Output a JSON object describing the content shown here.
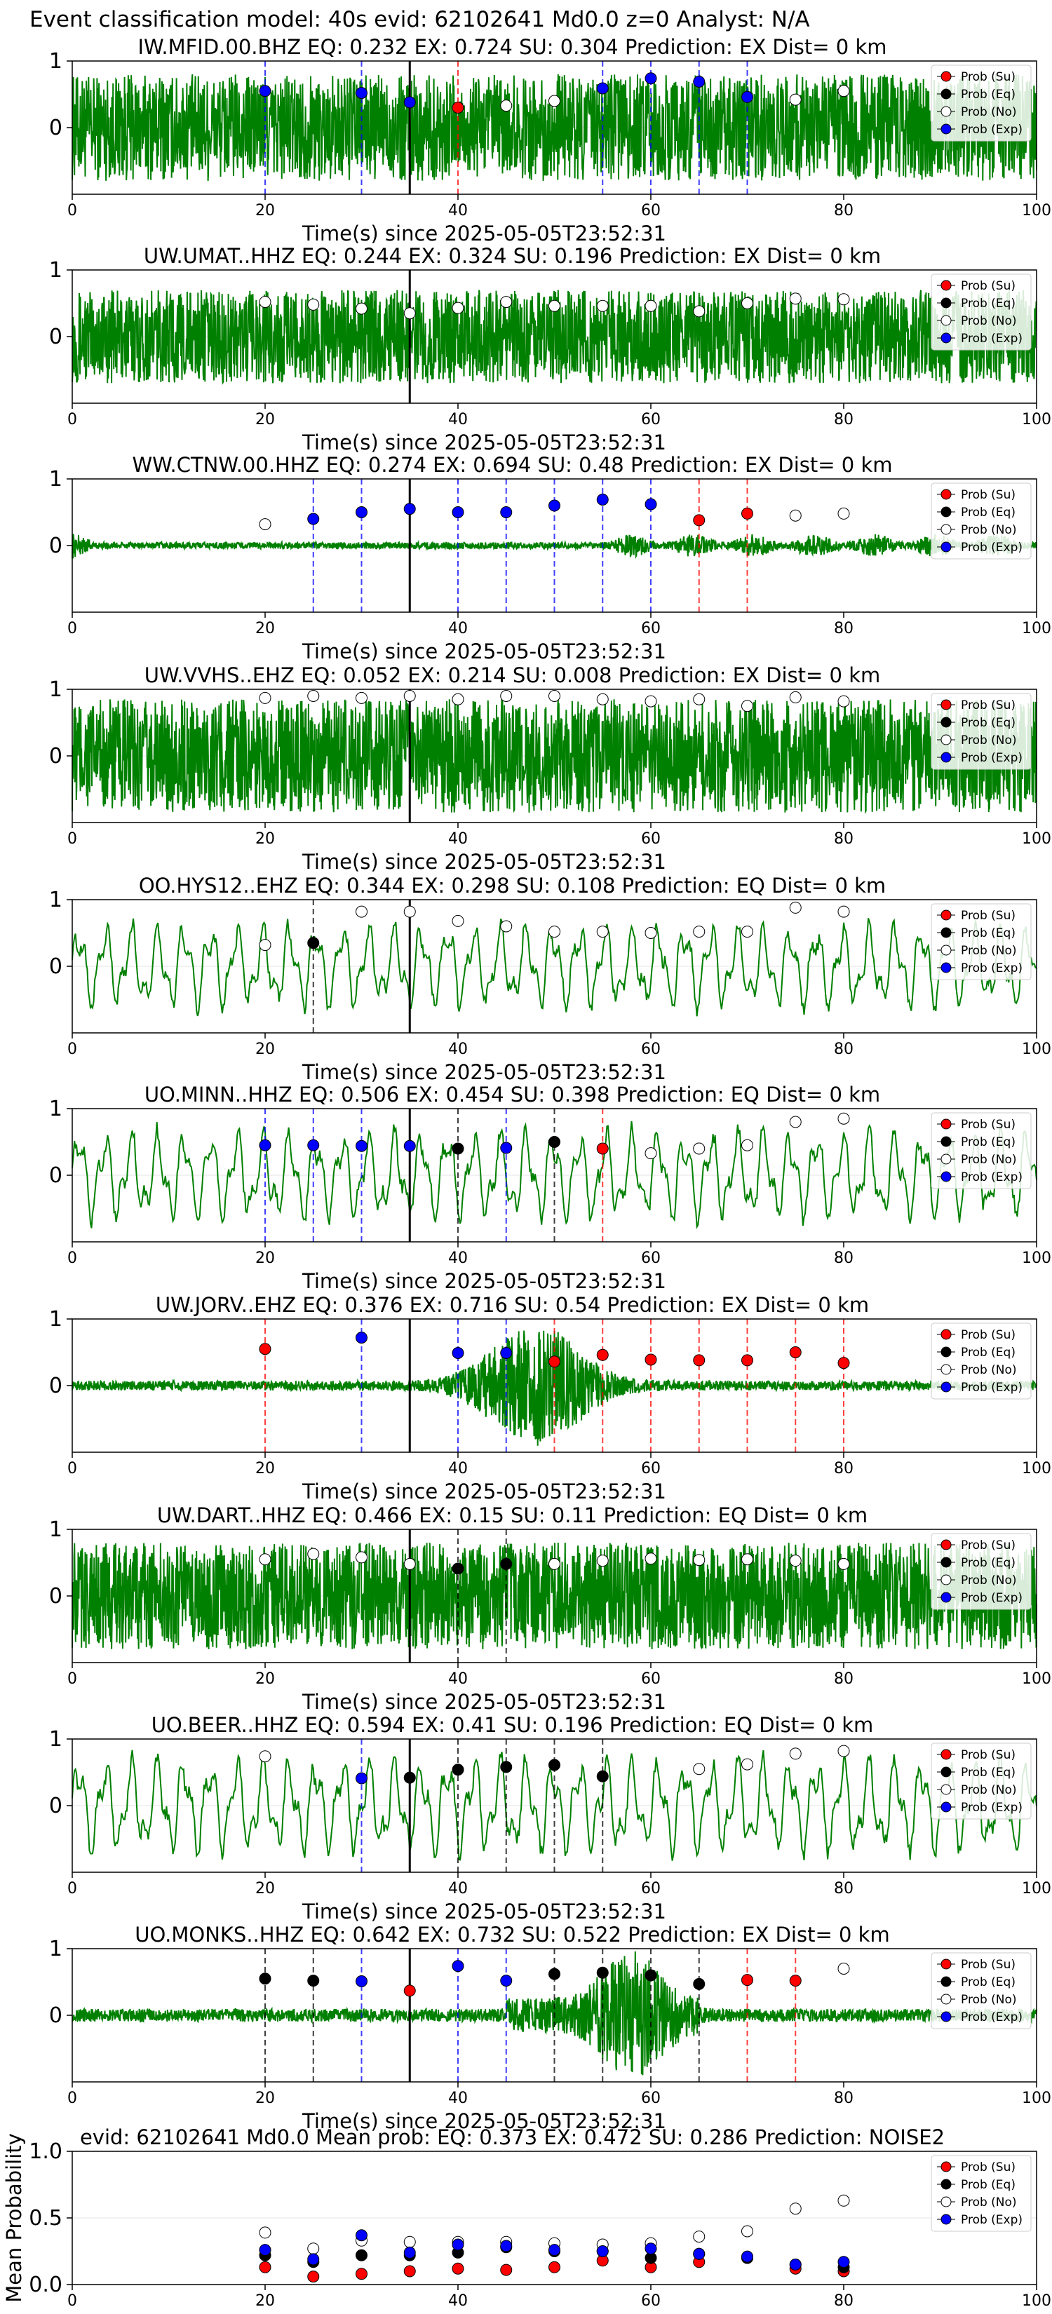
{
  "figure": {
    "title": "Event classification model: 40s evid: 62102641 Md0.0 z=0 Analyst: N/A"
  },
  "chart_data": [
    {
      "type": "line",
      "title": "IW.MFID.00.BHZ   EQ: 0.232  EX: 0.724  SU: 0.304   Prediction: EX    Dist= 0 km",
      "xlabel": "Time(s) since 2025-05-05T23:52:31",
      "xlim": [
        0,
        100
      ],
      "ylim": [
        -1,
        1
      ],
      "xticks": [
        0,
        20,
        40,
        60,
        80,
        100
      ],
      "yticks": [
        0,
        1
      ],
      "event_line_x": 35,
      "waveform": {
        "style": "dense",
        "amp": 0.8
      },
      "windows": [
        {
          "x": 20,
          "class": "Exp",
          "p": 0.55
        },
        {
          "x": 30,
          "class": "Exp",
          "p": 0.52
        },
        {
          "x": 35,
          "class": "Exp",
          "p": 0.38
        },
        {
          "x": 40,
          "class": "Su",
          "p": 0.3
        },
        {
          "x": 45,
          "class": "No",
          "p": 0.33
        },
        {
          "x": 50,
          "class": "No",
          "p": 0.4
        },
        {
          "x": 55,
          "class": "Exp",
          "p": 0.59
        },
        {
          "x": 60,
          "class": "Exp",
          "p": 0.74
        },
        {
          "x": 65,
          "class": "Exp",
          "p": 0.69
        },
        {
          "x": 70,
          "class": "Exp",
          "p": 0.46
        },
        {
          "x": 75,
          "class": "No",
          "p": 0.42
        },
        {
          "x": 80,
          "class": "No",
          "p": 0.55
        }
      ]
    },
    {
      "type": "line",
      "title": "UW.UMAT..HHZ   EQ: 0.244  EX: 0.324  SU: 0.196   Prediction: EX    Dist= 0 km",
      "xlabel": "Time(s) since 2025-05-05T23:52:31",
      "xlim": [
        0,
        100
      ],
      "ylim": [
        -1,
        1
      ],
      "xticks": [
        0,
        20,
        40,
        60,
        80,
        100
      ],
      "yticks": [
        0,
        1
      ],
      "event_line_x": 35,
      "waveform": {
        "style": "dense",
        "amp": 0.7
      },
      "windows": [
        {
          "x": 20,
          "class": "No",
          "p": 0.52
        },
        {
          "x": 25,
          "class": "No",
          "p": 0.48
        },
        {
          "x": 30,
          "class": "No",
          "p": 0.42
        },
        {
          "x": 35,
          "class": "No",
          "p": 0.35
        },
        {
          "x": 40,
          "class": "No",
          "p": 0.43
        },
        {
          "x": 45,
          "class": "No",
          "p": 0.52
        },
        {
          "x": 50,
          "class": "No",
          "p": 0.46
        },
        {
          "x": 55,
          "class": "No",
          "p": 0.46
        },
        {
          "x": 60,
          "class": "No",
          "p": 0.46
        },
        {
          "x": 65,
          "class": "No",
          "p": 0.38
        },
        {
          "x": 70,
          "class": "No",
          "p": 0.5
        },
        {
          "x": 75,
          "class": "No",
          "p": 0.57
        },
        {
          "x": 80,
          "class": "No",
          "p": 0.56
        }
      ]
    },
    {
      "type": "line",
      "title": "WW.CTNW.00.HHZ   EQ: 0.274  EX: 0.694  SU: 0.48   Prediction: EX    Dist= 0 km",
      "xlabel": "Time(s) since 2025-05-05T23:52:31",
      "xlim": [
        0,
        100
      ],
      "ylim": [
        -1,
        1
      ],
      "xticks": [
        0,
        20,
        40,
        60,
        80,
        100
      ],
      "yticks": [
        0,
        1
      ],
      "event_line_x": 35,
      "waveform": {
        "style": "quiet",
        "amp": 0.2
      },
      "windows": [
        {
          "x": 20,
          "class": "No",
          "p": 0.32
        },
        {
          "x": 25,
          "class": "Exp",
          "p": 0.4
        },
        {
          "x": 30,
          "class": "Exp",
          "p": 0.5
        },
        {
          "x": 35,
          "class": "Exp",
          "p": 0.55
        },
        {
          "x": 40,
          "class": "Exp",
          "p": 0.5
        },
        {
          "x": 45,
          "class": "Exp",
          "p": 0.5
        },
        {
          "x": 50,
          "class": "Exp",
          "p": 0.6
        },
        {
          "x": 55,
          "class": "Exp",
          "p": 0.69
        },
        {
          "x": 60,
          "class": "Exp",
          "p": 0.62
        },
        {
          "x": 65,
          "class": "Su",
          "p": 0.38
        },
        {
          "x": 70,
          "class": "Su",
          "p": 0.48
        },
        {
          "x": 75,
          "class": "No",
          "p": 0.45
        },
        {
          "x": 80,
          "class": "No",
          "p": 0.48
        }
      ]
    },
    {
      "type": "line",
      "title": "UW.VVHS..EHZ   EQ: 0.052  EX: 0.214  SU: 0.008   Prediction: EX    Dist= 0 km",
      "xlabel": "Time(s) since 2025-05-05T23:52:31",
      "xlim": [
        0,
        100
      ],
      "ylim": [
        -1,
        1
      ],
      "xticks": [
        0,
        20,
        40,
        60,
        80,
        100
      ],
      "yticks": [
        0,
        1
      ],
      "event_line_x": 35,
      "waveform": {
        "style": "dense",
        "amp": 0.85
      },
      "windows": [
        {
          "x": 20,
          "class": "No",
          "p": 0.87
        },
        {
          "x": 25,
          "class": "No",
          "p": 0.9
        },
        {
          "x": 30,
          "class": "No",
          "p": 0.87
        },
        {
          "x": 35,
          "class": "No",
          "p": 0.9
        },
        {
          "x": 40,
          "class": "No",
          "p": 0.85
        },
        {
          "x": 45,
          "class": "No",
          "p": 0.9
        },
        {
          "x": 50,
          "class": "No",
          "p": 0.9
        },
        {
          "x": 55,
          "class": "No",
          "p": 0.85
        },
        {
          "x": 60,
          "class": "No",
          "p": 0.82
        },
        {
          "x": 65,
          "class": "No",
          "p": 0.85
        },
        {
          "x": 70,
          "class": "No",
          "p": 0.75
        },
        {
          "x": 75,
          "class": "No",
          "p": 0.88
        },
        {
          "x": 80,
          "class": "No",
          "p": 0.82
        }
      ]
    },
    {
      "type": "line",
      "title": "OO.HYS12..EHZ   EQ: 0.344  EX: 0.298  SU: 0.108   Prediction: EQ    Dist= 0 km",
      "xlabel": "Time(s) since 2025-05-05T23:52:31",
      "xlim": [
        0,
        100
      ],
      "ylim": [
        -1,
        1
      ],
      "xticks": [
        0,
        20,
        40,
        60,
        80,
        100
      ],
      "yticks": [
        0,
        1
      ],
      "event_line_x": 35,
      "waveform": {
        "style": "wave",
        "amp": 0.75
      },
      "windows": [
        {
          "x": 20,
          "class": "No",
          "p": 0.32
        },
        {
          "x": 25,
          "class": "Eq",
          "p": 0.35
        },
        {
          "x": 30,
          "class": "No",
          "p": 0.82
        },
        {
          "x": 35,
          "class": "No",
          "p": 0.82
        },
        {
          "x": 40,
          "class": "No",
          "p": 0.68
        },
        {
          "x": 45,
          "class": "No",
          "p": 0.6
        },
        {
          "x": 50,
          "class": "No",
          "p": 0.52
        },
        {
          "x": 55,
          "class": "No",
          "p": 0.52
        },
        {
          "x": 60,
          "class": "No",
          "p": 0.5
        },
        {
          "x": 65,
          "class": "No",
          "p": 0.52
        },
        {
          "x": 70,
          "class": "No",
          "p": 0.52
        },
        {
          "x": 75,
          "class": "No",
          "p": 0.88
        },
        {
          "x": 80,
          "class": "No",
          "p": 0.82
        }
      ]
    },
    {
      "type": "line",
      "title": "UO.MINN..HHZ   EQ: 0.506  EX: 0.454  SU: 0.398   Prediction: EQ    Dist= 0 km",
      "xlabel": "Time(s) since 2025-05-05T23:52:31",
      "xlim": [
        0,
        100
      ],
      "ylim": [
        -1,
        1
      ],
      "xticks": [
        0,
        20,
        40,
        60,
        80,
        100
      ],
      "yticks": [
        0,
        1
      ],
      "event_line_x": 35,
      "waveform": {
        "style": "wave",
        "amp": 0.8
      },
      "windows": [
        {
          "x": 20,
          "class": "Exp",
          "p": 0.45
        },
        {
          "x": 25,
          "class": "Exp",
          "p": 0.45
        },
        {
          "x": 30,
          "class": "Exp",
          "p": 0.44
        },
        {
          "x": 35,
          "class": "Exp",
          "p": 0.44
        },
        {
          "x": 40,
          "class": "Eq",
          "p": 0.4
        },
        {
          "x": 45,
          "class": "Exp",
          "p": 0.41
        },
        {
          "x": 50,
          "class": "Eq",
          "p": 0.5
        },
        {
          "x": 55,
          "class": "Su",
          "p": 0.4
        },
        {
          "x": 60,
          "class": "No",
          "p": 0.33
        },
        {
          "x": 65,
          "class": "No",
          "p": 0.4
        },
        {
          "x": 70,
          "class": "No",
          "p": 0.45
        },
        {
          "x": 75,
          "class": "No",
          "p": 0.8
        },
        {
          "x": 80,
          "class": "No",
          "p": 0.85
        }
      ]
    },
    {
      "type": "line",
      "title": "UW.JORV..EHZ   EQ: 0.376  EX: 0.716  SU: 0.54   Prediction: EX    Dist= 0 km",
      "xlabel": "Time(s) since 2025-05-05T23:52:31",
      "xlim": [
        0,
        100
      ],
      "ylim": [
        -1,
        1
      ],
      "xticks": [
        0,
        20,
        40,
        60,
        80,
        100
      ],
      "yticks": [
        0,
        1
      ],
      "event_line_x": 35,
      "waveform": {
        "style": "burst",
        "amp": 0.9
      },
      "windows": [
        {
          "x": 20,
          "class": "Su",
          "p": 0.55
        },
        {
          "x": 30,
          "class": "Exp",
          "p": 0.72
        },
        {
          "x": 40,
          "class": "Exp",
          "p": 0.49
        },
        {
          "x": 45,
          "class": "Exp",
          "p": 0.49
        },
        {
          "x": 50,
          "class": "Su",
          "p": 0.36
        },
        {
          "x": 55,
          "class": "Su",
          "p": 0.46
        },
        {
          "x": 60,
          "class": "Su",
          "p": 0.39
        },
        {
          "x": 65,
          "class": "Su",
          "p": 0.38
        },
        {
          "x": 70,
          "class": "Su",
          "p": 0.38
        },
        {
          "x": 75,
          "class": "Su",
          "p": 0.5
        },
        {
          "x": 80,
          "class": "Su",
          "p": 0.34
        }
      ]
    },
    {
      "type": "line",
      "title": "UW.DART..HHZ   EQ: 0.466  EX: 0.15  SU: 0.11   Prediction: EQ    Dist= 0 km",
      "xlabel": "Time(s) since 2025-05-05T23:52:31",
      "xlim": [
        0,
        100
      ],
      "ylim": [
        -1,
        1
      ],
      "xticks": [
        0,
        20,
        40,
        60,
        80,
        100
      ],
      "yticks": [
        0,
        1
      ],
      "event_line_x": 35,
      "waveform": {
        "style": "dense",
        "amp": 0.8
      },
      "windows": [
        {
          "x": 20,
          "class": "No",
          "p": 0.55
        },
        {
          "x": 25,
          "class": "No",
          "p": 0.63
        },
        {
          "x": 30,
          "class": "No",
          "p": 0.58
        },
        {
          "x": 35,
          "class": "No",
          "p": 0.48
        },
        {
          "x": 40,
          "class": "Eq",
          "p": 0.41
        },
        {
          "x": 45,
          "class": "Eq",
          "p": 0.48
        },
        {
          "x": 50,
          "class": "No",
          "p": 0.48
        },
        {
          "x": 55,
          "class": "No",
          "p": 0.53
        },
        {
          "x": 60,
          "class": "No",
          "p": 0.56
        },
        {
          "x": 65,
          "class": "No",
          "p": 0.54
        },
        {
          "x": 70,
          "class": "No",
          "p": 0.55
        },
        {
          "x": 75,
          "class": "No",
          "p": 0.53
        },
        {
          "x": 80,
          "class": "No",
          "p": 0.48
        }
      ]
    },
    {
      "type": "line",
      "title": "UO.BEER..HHZ   EQ: 0.594  EX: 0.41  SU: 0.196   Prediction: EQ    Dist= 0 km",
      "xlabel": "Time(s) since 2025-05-05T23:52:31",
      "xlim": [
        0,
        100
      ],
      "ylim": [
        -1,
        1
      ],
      "xticks": [
        0,
        20,
        40,
        60,
        80,
        100
      ],
      "yticks": [
        0,
        1
      ],
      "event_line_x": 35,
      "waveform": {
        "style": "wave",
        "amp": 0.85
      },
      "windows": [
        {
          "x": 20,
          "class": "No",
          "p": 0.74
        },
        {
          "x": 30,
          "class": "Exp",
          "p": 0.41
        },
        {
          "x": 35,
          "class": "Eq",
          "p": 0.42
        },
        {
          "x": 40,
          "class": "Eq",
          "p": 0.54
        },
        {
          "x": 45,
          "class": "Eq",
          "p": 0.58
        },
        {
          "x": 50,
          "class": "Eq",
          "p": 0.61
        },
        {
          "x": 55,
          "class": "Eq",
          "p": 0.44
        },
        {
          "x": 65,
          "class": "No",
          "p": 0.55
        },
        {
          "x": 70,
          "class": "No",
          "p": 0.62
        },
        {
          "x": 75,
          "class": "No",
          "p": 0.78
        },
        {
          "x": 80,
          "class": "No",
          "p": 0.82
        }
      ]
    },
    {
      "type": "line",
      "title": "UO.MONKS..HHZ   EQ: 0.642  EX: 0.732  SU: 0.522   Prediction: EX    Dist= 0 km",
      "xlabel": "Time(s) since 2025-05-05T23:52:31",
      "xlim": [
        0,
        100
      ],
      "ylim": [
        -1,
        1
      ],
      "xticks": [
        0,
        20,
        40,
        60,
        80,
        100
      ],
      "yticks": [
        0,
        1
      ],
      "event_line_x": 35,
      "waveform": {
        "style": "burst2",
        "amp": 0.8
      },
      "windows": [
        {
          "x": 20,
          "class": "Eq",
          "p": 0.55
        },
        {
          "x": 25,
          "class": "Eq",
          "p": 0.52
        },
        {
          "x": 30,
          "class": "Exp",
          "p": 0.51
        },
        {
          "x": 35,
          "class": "Su",
          "p": 0.37
        },
        {
          "x": 40,
          "class": "Exp",
          "p": 0.74
        },
        {
          "x": 45,
          "class": "Exp",
          "p": 0.52
        },
        {
          "x": 50,
          "class": "Eq",
          "p": 0.62
        },
        {
          "x": 55,
          "class": "Eq",
          "p": 0.64
        },
        {
          "x": 60,
          "class": "Eq",
          "p": 0.6
        },
        {
          "x": 65,
          "class": "Eq",
          "p": 0.47
        },
        {
          "x": 70,
          "class": "Su",
          "p": 0.53
        },
        {
          "x": 75,
          "class": "Su",
          "p": 0.52
        },
        {
          "x": 80,
          "class": "No",
          "p": 0.7
        }
      ]
    },
    {
      "type": "scatter",
      "title": "evid: 62102641  Md0.0   Mean prob:   EQ: 0.373  EX: 0.472  SU: 0.286   Prediction: NOISE2",
      "ylabel": "Mean Probability",
      "xlim": [
        0,
        100
      ],
      "ylim": [
        0,
        1
      ],
      "xticks": [
        0,
        20,
        40,
        60,
        80,
        100
      ],
      "yticks": [
        0.0,
        0.5,
        1.0
      ],
      "x": [
        20,
        25,
        30,
        35,
        40,
        45,
        50,
        55,
        60,
        65,
        70,
        75,
        80
      ],
      "series": [
        {
          "name": "Prob (Su)",
          "values": [
            0.13,
            0.06,
            0.08,
            0.1,
            0.12,
            0.11,
            0.13,
            0.18,
            0.13,
            0.17,
            0.2,
            0.12,
            0.1
          ]
        },
        {
          "name": "Prob (Eq)",
          "values": [
            0.22,
            0.17,
            0.22,
            0.22,
            0.24,
            0.28,
            0.25,
            0.25,
            0.2,
            0.23,
            0.2,
            0.15,
            0.13
          ]
        },
        {
          "name": "Prob (No)",
          "values": [
            0.39,
            0.27,
            0.33,
            0.32,
            0.32,
            0.32,
            0.31,
            0.3,
            0.31,
            0.36,
            0.4,
            0.57,
            0.63
          ]
        },
        {
          "name": "Prob (Exp)",
          "values": [
            0.26,
            0.19,
            0.37,
            0.24,
            0.3,
            0.29,
            0.26,
            0.25,
            0.27,
            0.23,
            0.21,
            0.15,
            0.17
          ]
        }
      ]
    }
  ],
  "legend": [
    {
      "label": "Prob (Su)",
      "color": "#ff0000"
    },
    {
      "label": "Prob (Eq)",
      "color": "#000000"
    },
    {
      "label": "Prob (No)",
      "color": "#ffffff"
    },
    {
      "label": "Prob (Exp)",
      "color": "#0000ff"
    }
  ],
  "colors": {
    "waveform": "#008000",
    "Su": "#ff0000",
    "Eq": "#000000",
    "No": "#ffffff",
    "Exp": "#0000ff",
    "event_line": "#000000"
  }
}
